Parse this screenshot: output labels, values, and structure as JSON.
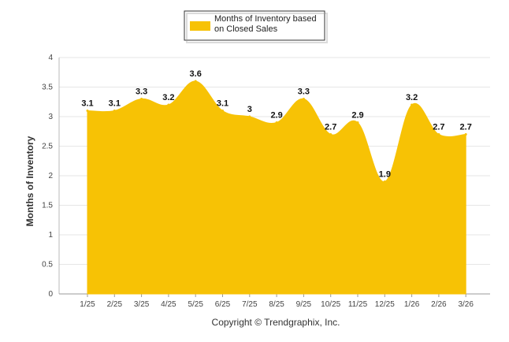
{
  "chart_data": {
    "type": "area",
    "categories": [
      "1/25",
      "2/25",
      "3/25",
      "4/25",
      "5/25",
      "6/25",
      "7/25",
      "8/25",
      "9/25",
      "10/25",
      "11/25",
      "12/25",
      "1/26",
      "2/26",
      "3/26"
    ],
    "series": [
      {
        "name": "Months of Inventory based on Closed Sales",
        "values": [
          3.1,
          3.1,
          3.3,
          3.2,
          3.6,
          3.1,
          3.0,
          2.9,
          3.3,
          2.7,
          2.9,
          1.9,
          3.2,
          2.7,
          2.7
        ],
        "labels": [
          "3.1",
          "3.1",
          "3.3",
          "3.2",
          "3.6",
          "3.1",
          "3",
          "2.9",
          "3.3",
          "2.7",
          "2.9",
          "1.9",
          "3.2",
          "2.7",
          "2.7"
        ],
        "color": "#F7C205"
      }
    ],
    "legend_lines": [
      "Months of Inventory based",
      "on Closed Sales"
    ],
    "ylabel": "Months of Inventory",
    "yticks": [
      "0",
      "0.5",
      "1",
      "1.5",
      "2",
      "2.5",
      "3",
      "3.5",
      "4"
    ],
    "ylim": [
      0,
      4
    ],
    "grid": true,
    "legend_position": "top-center",
    "copyright": "Copyright © Trendgraphix, Inc."
  }
}
